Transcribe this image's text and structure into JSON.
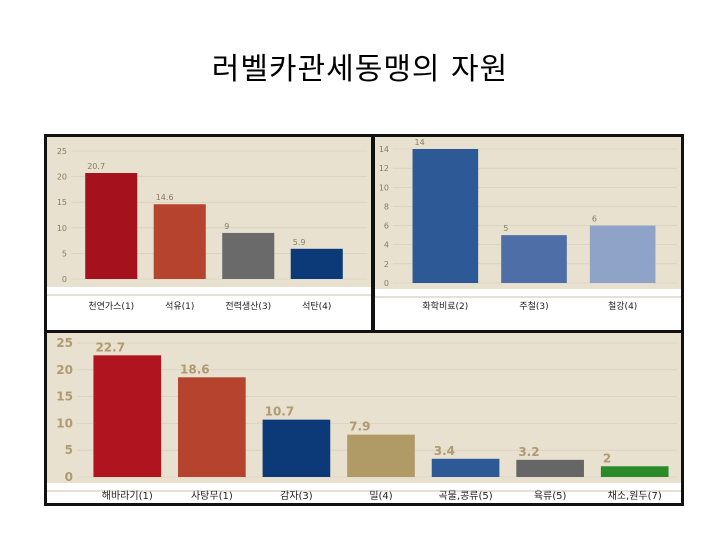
{
  "title": "러벨카관세동맹의 자원",
  "chart_data": [
    {
      "type": "bar",
      "categories": [
        "천연가스(1)",
        "석유(1)",
        "전력생산(3)",
        "석탄(4)"
      ],
      "values": [
        20.7,
        14.6,
        9,
        5.9
      ],
      "value_labels": [
        "20.7",
        "14.6",
        "9",
        "5.9"
      ],
      "colors": [
        "#a5111c",
        "#b5432e",
        "#6a6a6a",
        "#0c3a78"
      ],
      "ylim": [
        0,
        25
      ],
      "yticks": [
        0,
        5,
        10,
        15,
        20,
        25
      ],
      "title": "",
      "xlabel": "",
      "ylabel": "",
      "background": "#e8e1d0",
      "grid": true
    },
    {
      "type": "bar",
      "categories": [
        "화학비료(2)",
        "주철(3)",
        "철강(4)"
      ],
      "values": [
        14,
        5,
        6
      ],
      "value_labels": [
        "14",
        "5",
        "6"
      ],
      "colors": [
        "#2d5a96",
        "#4d6ea6",
        "#8fa3c8"
      ],
      "ylim": [
        0,
        14
      ],
      "yticks": [
        0,
        2,
        4,
        6,
        8,
        10,
        12,
        14
      ],
      "title": "",
      "xlabel": "",
      "ylabel": "",
      "background": "#e8e1d0",
      "grid": true
    },
    {
      "type": "bar",
      "categories": [
        "해바라기(1)",
        "사탕무(1)",
        "감자(3)",
        "밀(4)",
        "곡물,콩류(5)",
        "육류(5)",
        "채소,원두(7)"
      ],
      "values": [
        22.7,
        18.6,
        10.7,
        7.9,
        3.4,
        3.2,
        2
      ],
      "value_labels": [
        "22.7",
        "18.6",
        "10.7",
        "7.9",
        "3.4",
        "3.2",
        "2"
      ],
      "colors": [
        "#b0141e",
        "#b5432e",
        "#0c3a78",
        "#b09a66",
        "#2d5a96",
        "#666666",
        "#2a8a2a"
      ],
      "ylim": [
        0,
        25
      ],
      "yticks": [
        0,
        5,
        10,
        15,
        20,
        25
      ],
      "title": "",
      "xlabel": "",
      "ylabel": "",
      "background": "#e8e1d0",
      "grid": true
    }
  ]
}
